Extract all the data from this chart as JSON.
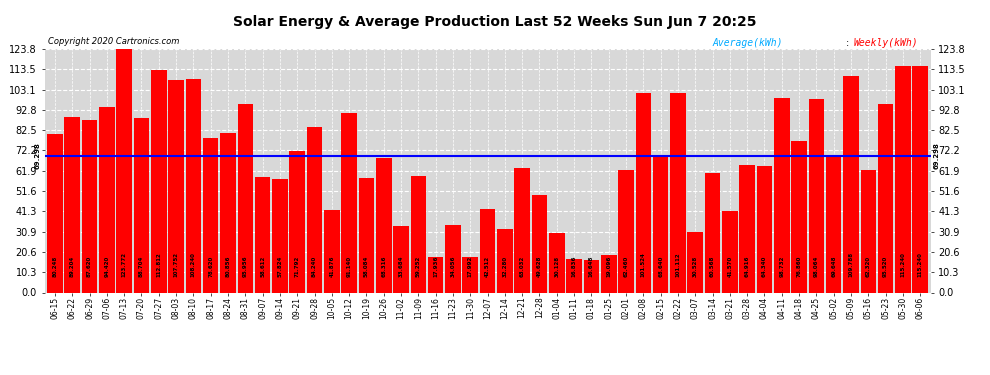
{
  "title": "Solar Energy & Average Production Last 52 Weeks Sun Jun 7 20:25",
  "copyright": "Copyright 2020 Cartronics.com",
  "average_line": 69.298,
  "average_label": "69.298",
  "bar_color": "#FF0000",
  "average_line_color": "#0000FF",
  "legend_average_color": "#00AAFF",
  "legend_weekly_color": "#FF0000",
  "background_color": "#FFFFFF",
  "plot_background_color": "#D8D8D8",
  "grid_color": "#FFFFFF",
  "ylim": [
    0,
    123.8
  ],
  "yticks": [
    0.0,
    10.3,
    20.6,
    30.9,
    41.3,
    51.6,
    61.9,
    72.2,
    82.5,
    92.8,
    103.1,
    113.5,
    123.8
  ],
  "categories": [
    "06-15",
    "06-22",
    "06-29",
    "07-06",
    "07-13",
    "07-20",
    "07-27",
    "08-03",
    "08-10",
    "08-17",
    "08-24",
    "08-31",
    "09-07",
    "09-14",
    "09-21",
    "09-28",
    "10-05",
    "10-12",
    "10-19",
    "10-26",
    "11-02",
    "11-09",
    "11-16",
    "11-23",
    "11-30",
    "12-07",
    "12-14",
    "12-21",
    "12-28",
    "01-04",
    "01-11",
    "01-18",
    "01-25",
    "02-01",
    "02-08",
    "02-15",
    "02-22",
    "03-07",
    "03-14",
    "03-21",
    "03-28",
    "04-04",
    "04-11",
    "04-18",
    "04-25",
    "05-02",
    "05-09",
    "05-16",
    "05-23",
    "05-30",
    "06-06"
  ],
  "values": [
    80.248,
    89.204,
    87.62,
    94.42,
    123.772,
    88.704,
    112.812,
    107.752,
    108.24,
    78.62,
    80.856,
    95.956,
    58.612,
    57.824,
    71.792,
    84.24,
    41.876,
    91.14,
    58.084,
    68.316,
    33.684,
    59.252,
    17.936,
    34.056,
    17.992,
    42.512,
    32.28,
    63.032,
    49.628,
    30.128,
    16.836,
    16.648,
    19.096,
    62.46,
    101.524,
    68.64,
    101.112,
    30.528,
    60.568,
    41.57,
    64.916,
    64.34,
    98.732,
    76.86,
    98.064,
    69.648,
    109.788,
    62.32,
    95.52,
    115.24,
    115.24
  ],
  "value_labels": [
    "80.248",
    "89.204",
    "87.620",
    "94.420",
    "123.772",
    "88.704",
    "112.812",
    "107.752",
    "108.240",
    "78.620",
    "80.856",
    "95.956",
    "58.612",
    "57.824",
    "71.792",
    "84.240",
    "41.876",
    "91.140",
    "58.084",
    "68.316",
    "33.684",
    "59.252",
    "17.936",
    "34.056",
    "17.992",
    "42.512",
    "32.280",
    "63.032",
    "49.628",
    "30.128",
    "16.836",
    "16.648",
    "19.096",
    "62.460",
    "101.524",
    "68.640",
    "101.112",
    "30.528",
    "60.568",
    "41.570",
    "64.916",
    "64.340",
    "98.732",
    "76.860",
    "98.064",
    "69.648",
    "109.788",
    "62.320",
    "95.520",
    "115.240",
    "115.240"
  ]
}
